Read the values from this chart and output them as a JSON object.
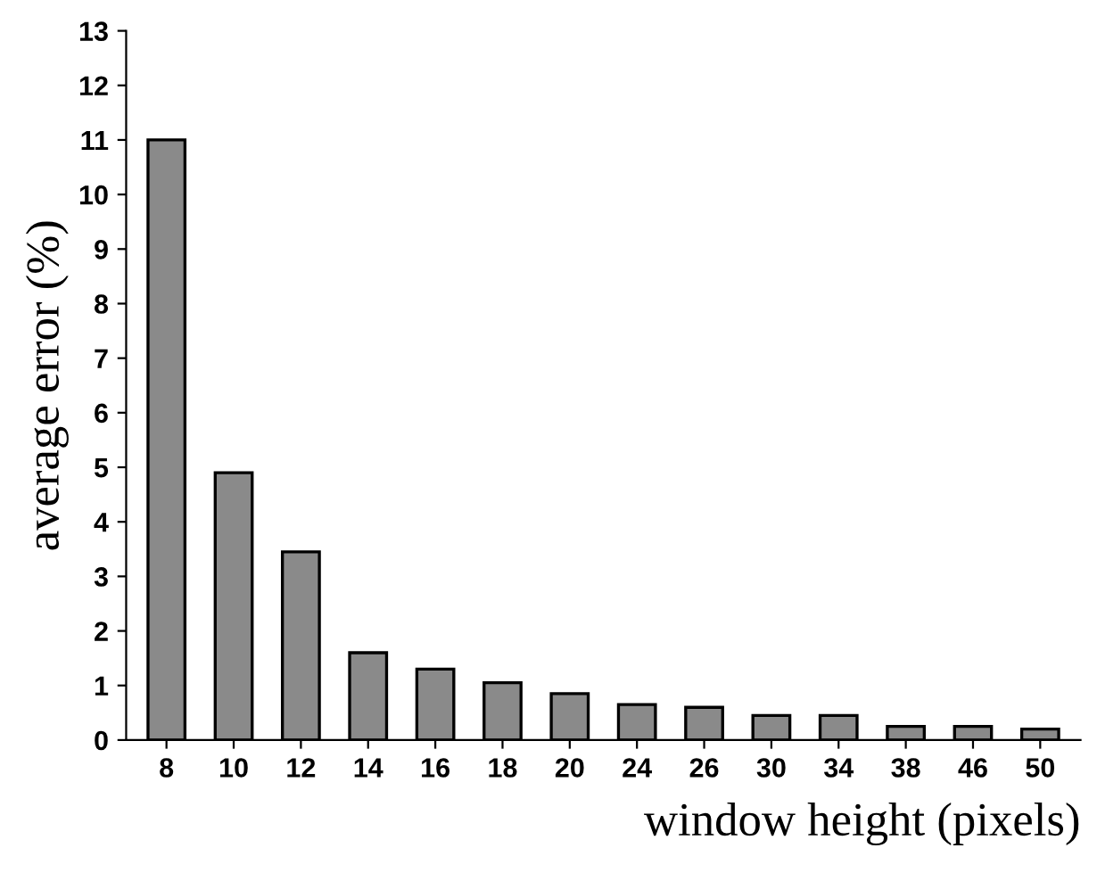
{
  "chart_data": {
    "type": "bar",
    "xlabel": "window height (pixels)",
    "ylabel": "average error (%)",
    "categories": [
      "8",
      "10",
      "12",
      "14",
      "16",
      "18",
      "20",
      "24",
      "26",
      "30",
      "34",
      "38",
      "46",
      "50"
    ],
    "values": [
      11,
      4.9,
      3.45,
      1.6,
      1.3,
      1.05,
      0.85,
      0.65,
      0.6,
      0.45,
      0.45,
      0.25,
      0.25,
      0.2
    ],
    "color": "#8a8a8a",
    "ylim": [
      0,
      13
    ],
    "yticks": [
      0,
      1,
      2,
      3,
      4,
      5,
      6,
      7,
      8,
      9,
      10,
      11,
      12,
      13
    ],
    "grid": false
  }
}
